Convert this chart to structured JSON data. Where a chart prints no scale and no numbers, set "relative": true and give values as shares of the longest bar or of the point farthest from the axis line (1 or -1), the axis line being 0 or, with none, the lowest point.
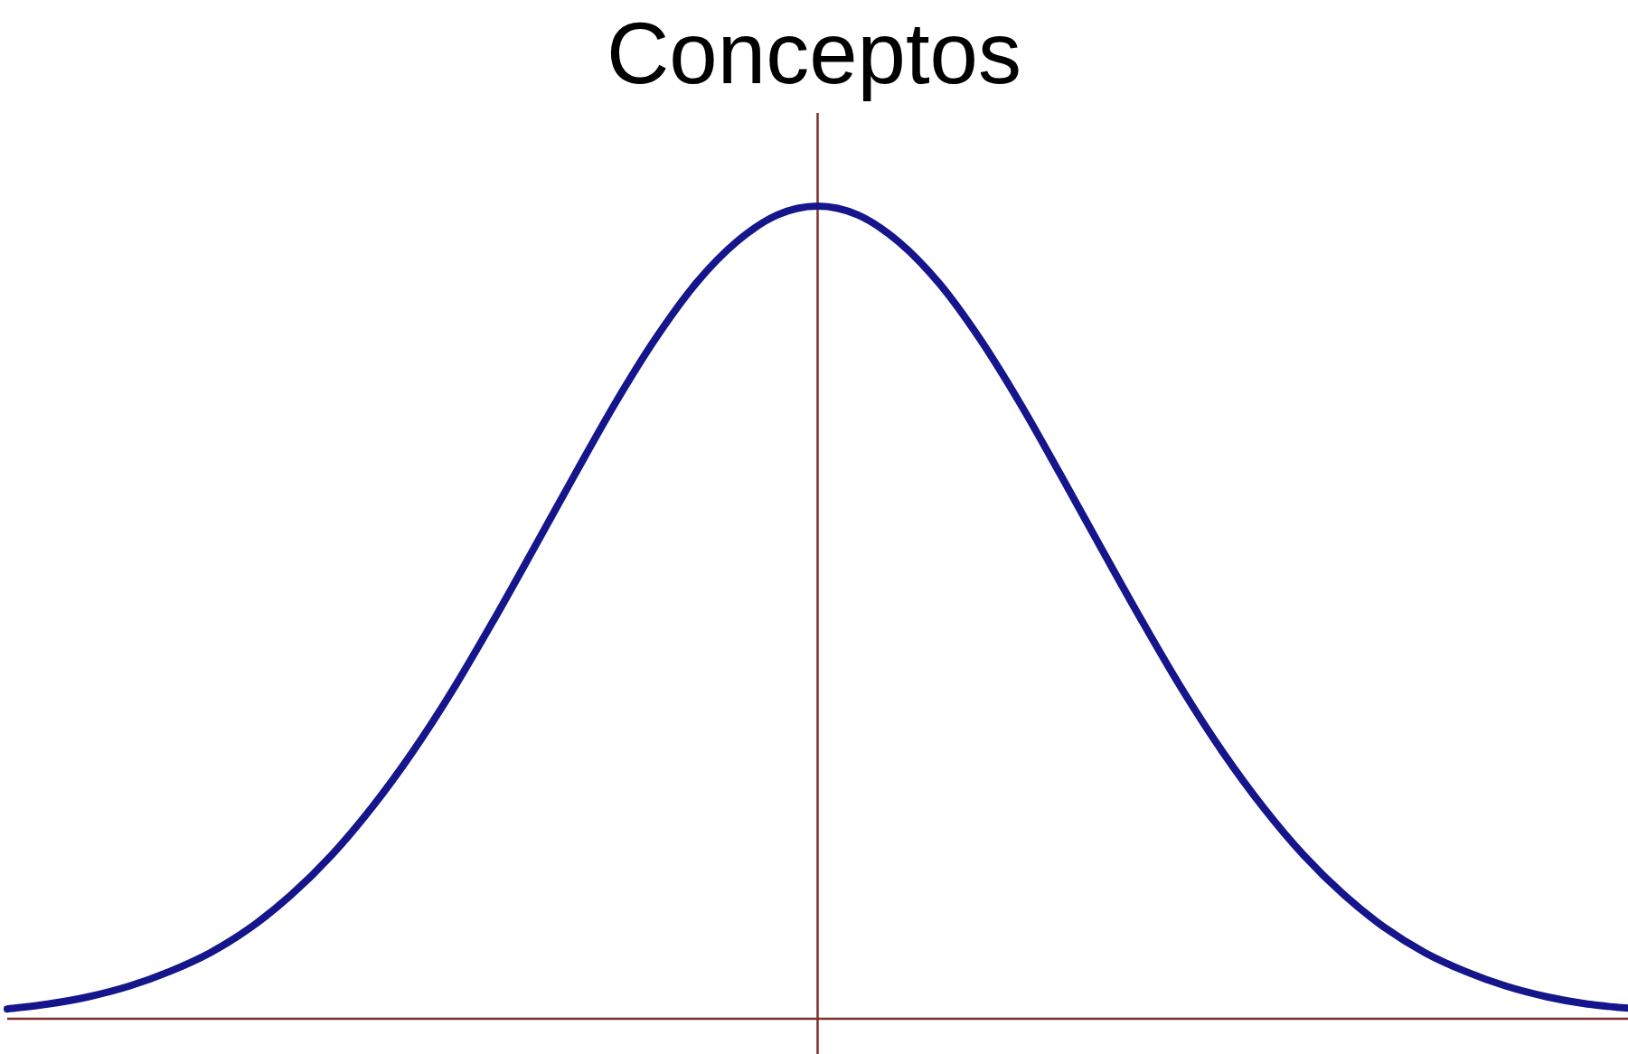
{
  "chart_data": {
    "type": "line",
    "title": "Conceptos",
    "categories": [
      null,
      null,
      null,
      null,
      null,
      null,
      null,
      null,
      null,
      null,
      null,
      null,
      null,
      null,
      null,
      null,
      null,
      null,
      null,
      null,
      null,
      null,
      null,
      null,
      null,
      null,
      null,
      null,
      null,
      null,
      null,
      null,
      null,
      null,
      null,
      null,
      null,
      null,
      null,
      null,
      null
    ],
    "values": [
      0.012,
      0.018,
      0.027,
      0.04,
      0.058,
      0.081,
      0.112,
      0.152,
      0.201,
      0.26,
      0.328,
      0.405,
      0.49,
      0.579,
      0.669,
      0.757,
      0.837,
      0.905,
      0.956,
      0.989,
      1,
      0.989,
      0.956,
      0.905,
      0.837,
      0.757,
      0.669,
      0.579,
      0.49,
      0.405,
      0.328,
      0.26,
      0.201,
      0.152,
      0.112,
      0.081,
      0.058,
      0.04,
      0.027,
      0.018,
      0.013
    ],
    "color": "#15158c",
    "relative": true
  }
}
